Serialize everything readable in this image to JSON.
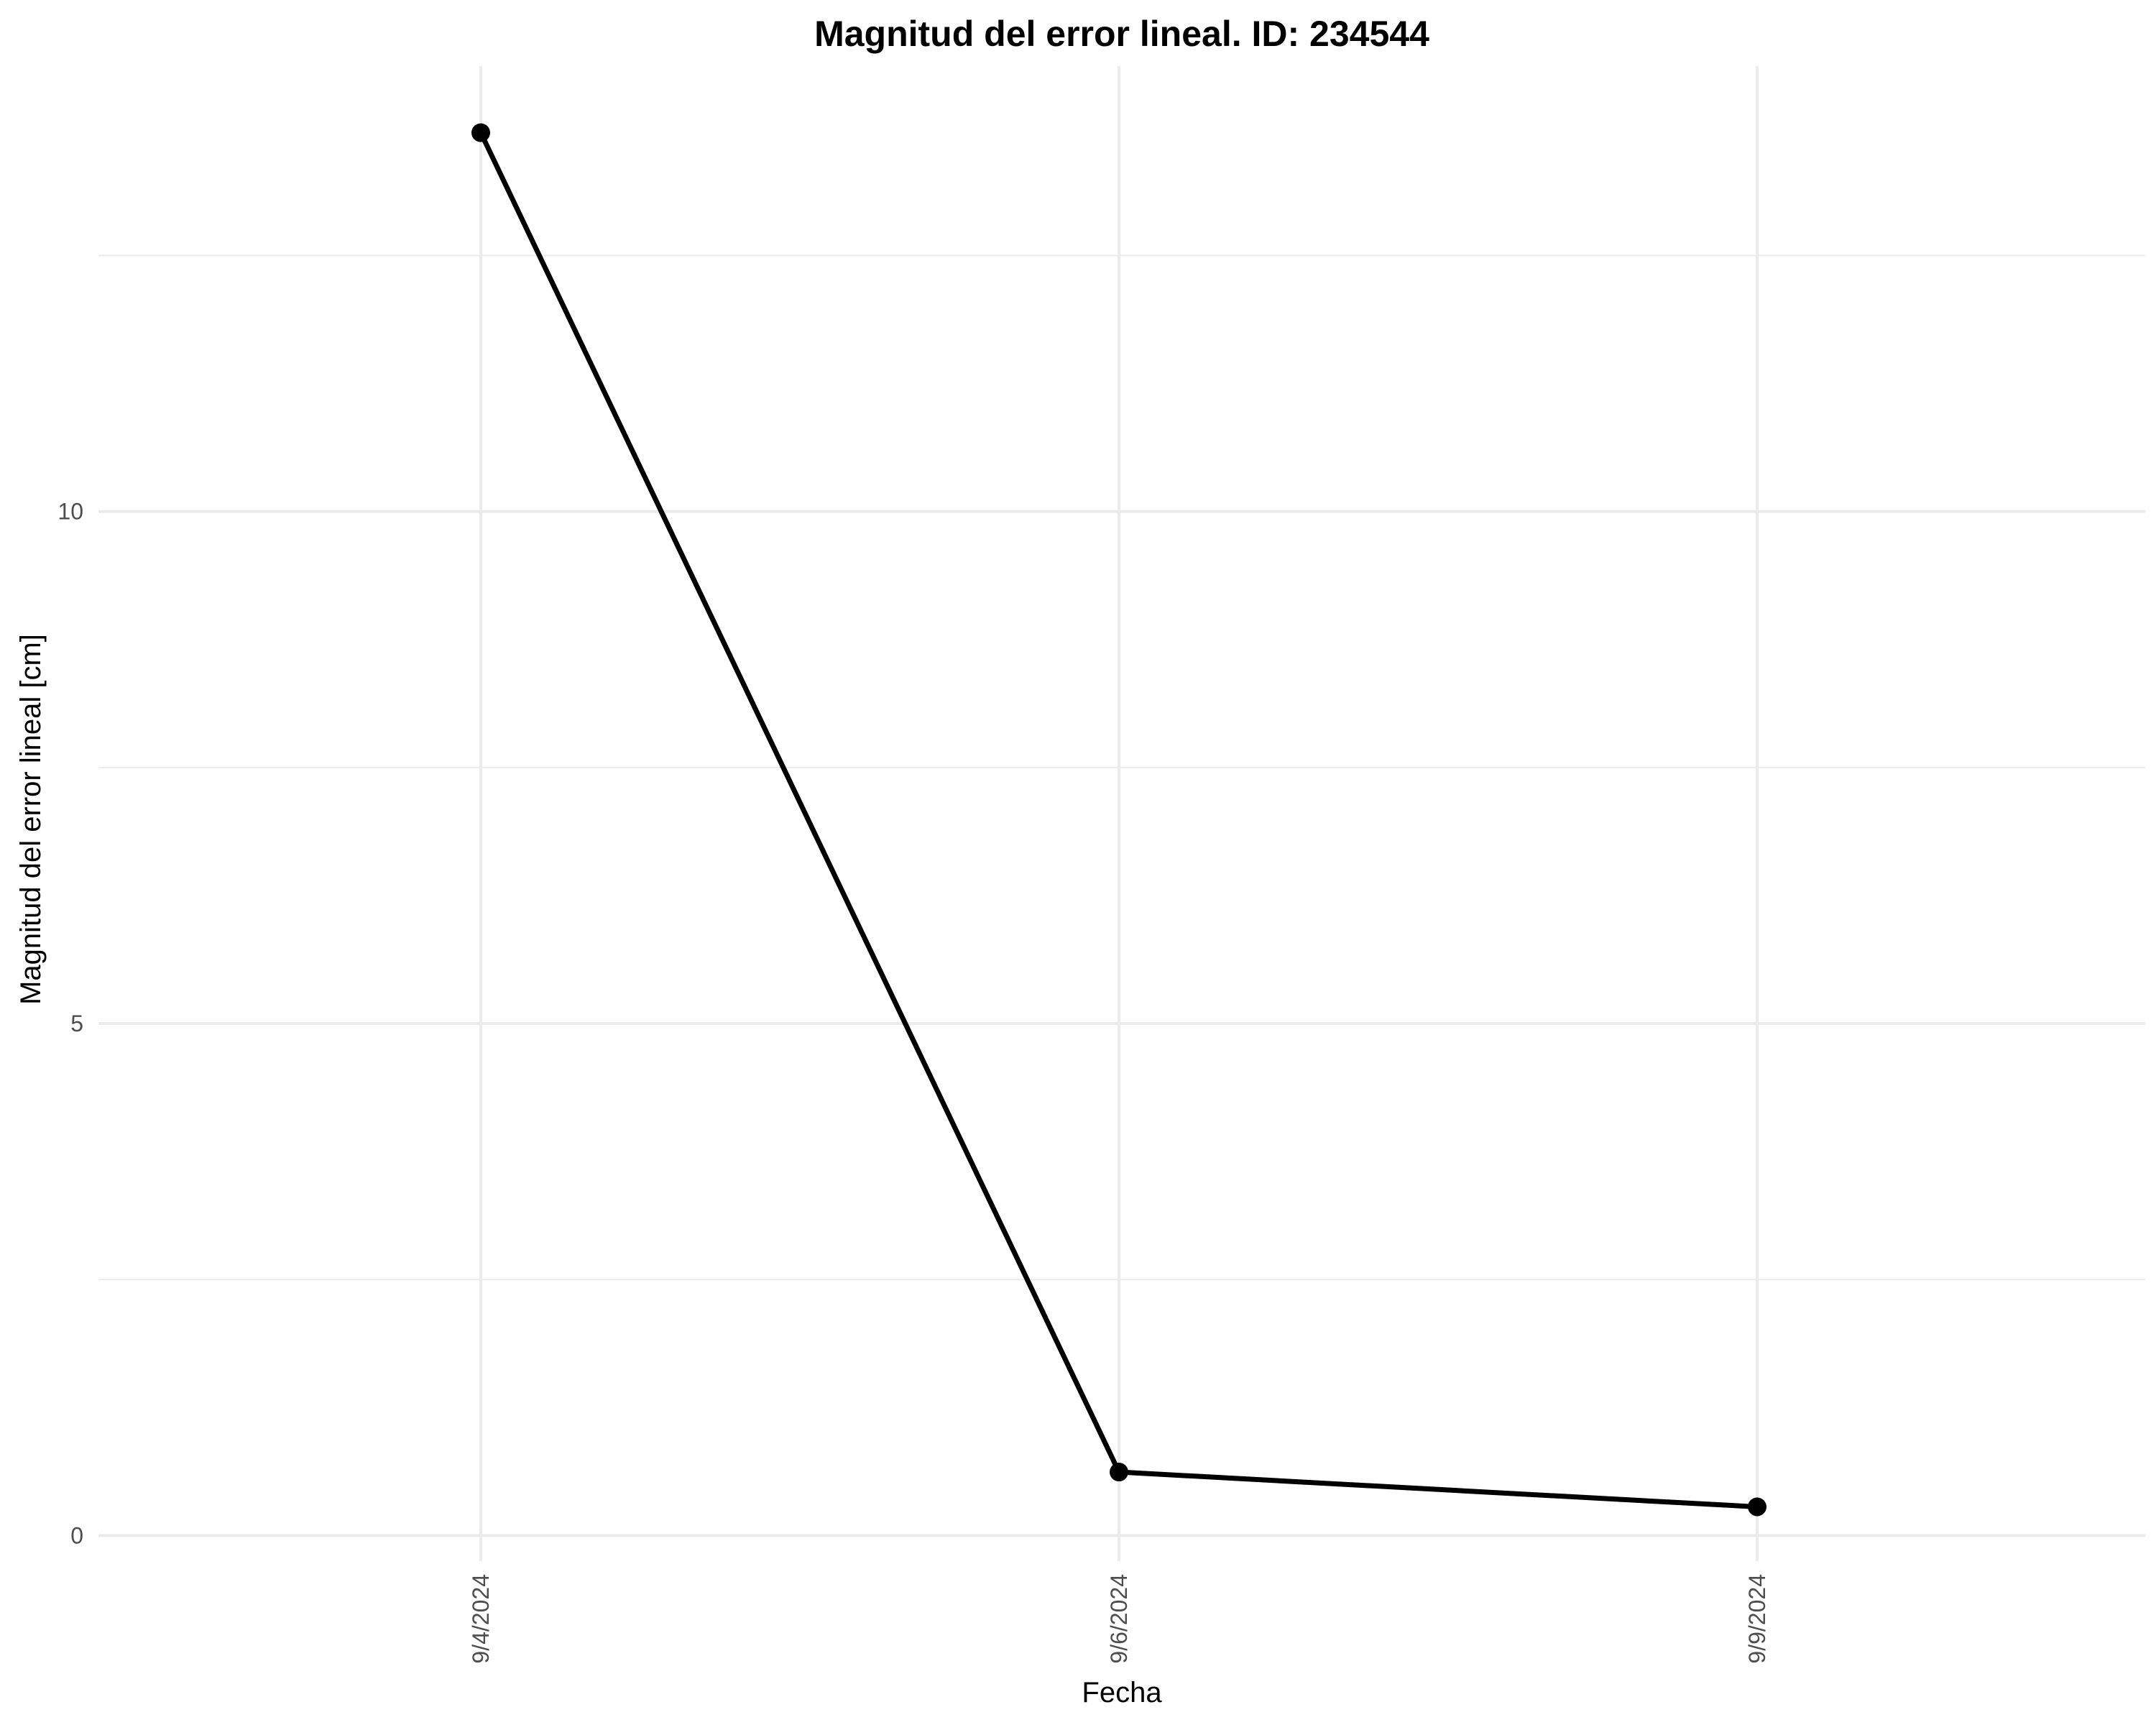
{
  "chart_data": {
    "type": "line",
    "title": "Magnitud del error lineal. ID: 234544",
    "xlabel": "Fecha",
    "ylabel": "Magnitud del error lineal [cm]",
    "x": [
      "9/4/2024",
      "9/6/2024",
      "9/9/2024"
    ],
    "x_tick_labels": [
      "9/4/2024",
      "9/6/2024",
      "9/9/2024"
    ],
    "series": [
      {
        "values": [
          13.7,
          0.62,
          0.28
        ]
      }
    ],
    "y_ticks": [
      0,
      5,
      10
    ],
    "y_tick_labels": [
      "0",
      "5",
      "10"
    ],
    "y_minor_ticks": [
      2.5,
      7.5,
      12.5
    ],
    "ylim": [
      -0.25,
      14.35
    ],
    "grid": true,
    "legend": "none",
    "line_color": "#000000",
    "grid_color": "#ebebeb"
  }
}
